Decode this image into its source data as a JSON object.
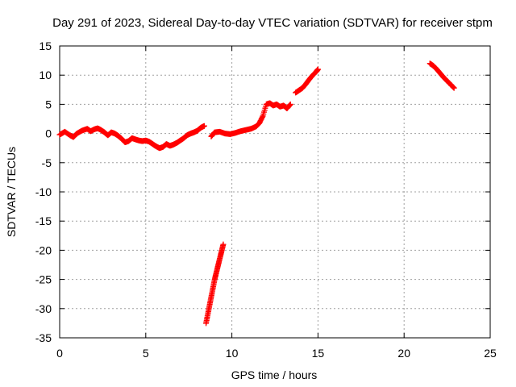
{
  "chart_data": {
    "type": "scatter",
    "title": "Day 291 of 2023, Sidereal Day-to-day VTEC variation (SDTVAR) for receiver stpm",
    "xlabel": "GPS time / hours",
    "ylabel": "SDTVAR / TECUs",
    "xlim": [
      0,
      25
    ],
    "ylim": [
      -35,
      15
    ],
    "xticks": [
      0,
      5,
      10,
      15,
      20,
      25
    ],
    "yticks": [
      -35,
      -30,
      -25,
      -20,
      -15,
      -10,
      -5,
      0,
      5,
      10,
      15
    ],
    "grid": true,
    "marker": "plus",
    "color": "#ff0000",
    "segments": [
      {
        "x": [
          0,
          0.3,
          0.6,
          0.8,
          1.0,
          1.3,
          1.6,
          1.8,
          2.0,
          2.2,
          2.4,
          2.6,
          2.8,
          3.0,
          3.2,
          3.4,
          3.6,
          3.8,
          4.0,
          4.2,
          4.4,
          4.6,
          4.8,
          5.0,
          5.2,
          5.4,
          5.6,
          5.8,
          6.0,
          6.2,
          6.4,
          6.6,
          6.8,
          7.0,
          7.2,
          7.4,
          7.6,
          7.8,
          8.0,
          8.2,
          8.4
        ],
        "y": [
          -0.2,
          0.3,
          -0.3,
          -0.6,
          0.0,
          0.5,
          0.8,
          0.4,
          0.7,
          0.9,
          0.6,
          0.2,
          -0.3,
          0.2,
          0.0,
          -0.4,
          -0.9,
          -1.5,
          -1.3,
          -0.8,
          -1.0,
          -1.2,
          -1.3,
          -1.2,
          -1.4,
          -1.8,
          -2.2,
          -2.5,
          -2.3,
          -1.8,
          -2.1,
          -1.9,
          -1.6,
          -1.2,
          -0.8,
          -0.3,
          0.0,
          0.2,
          0.5,
          1.0,
          1.3
        ]
      },
      {
        "x": [
          8.5,
          8.6,
          8.7,
          8.8,
          8.9,
          9.0,
          9.1,
          9.2,
          9.3,
          9.4,
          9.5
        ],
        "y": [
          -32.5,
          -31.0,
          -29.5,
          -28.0,
          -26.5,
          -25.0,
          -23.8,
          -22.6,
          -21.4,
          -20.2,
          -19.0
        ]
      },
      {
        "x": [
          8.8,
          9.0,
          9.3,
          9.6,
          9.9,
          10.2,
          10.5,
          10.8,
          11.1,
          11.4,
          11.6,
          11.8,
          12.0,
          12.2,
          12.4,
          12.6,
          12.8,
          13.0,
          13.2,
          13.4
        ],
        "y": [
          -0.5,
          0.2,
          0.3,
          0.0,
          -0.1,
          0.1,
          0.4,
          0.6,
          0.8,
          1.2,
          1.8,
          3.0,
          5.0,
          5.2,
          4.8,
          5.0,
          4.6,
          4.8,
          4.3,
          5.0
        ]
      },
      {
        "x": [
          13.7,
          13.9,
          14.1,
          14.3,
          14.5,
          14.7,
          14.9,
          15.0
        ],
        "y": [
          7.0,
          7.4,
          7.8,
          8.5,
          9.3,
          10.0,
          10.6,
          11.0
        ]
      },
      {
        "x": [
          21.5,
          21.7,
          21.9,
          22.1,
          22.3,
          22.5,
          22.7,
          22.9
        ],
        "y": [
          12.0,
          11.6,
          11.0,
          10.3,
          9.6,
          9.0,
          8.4,
          7.8
        ]
      }
    ]
  }
}
